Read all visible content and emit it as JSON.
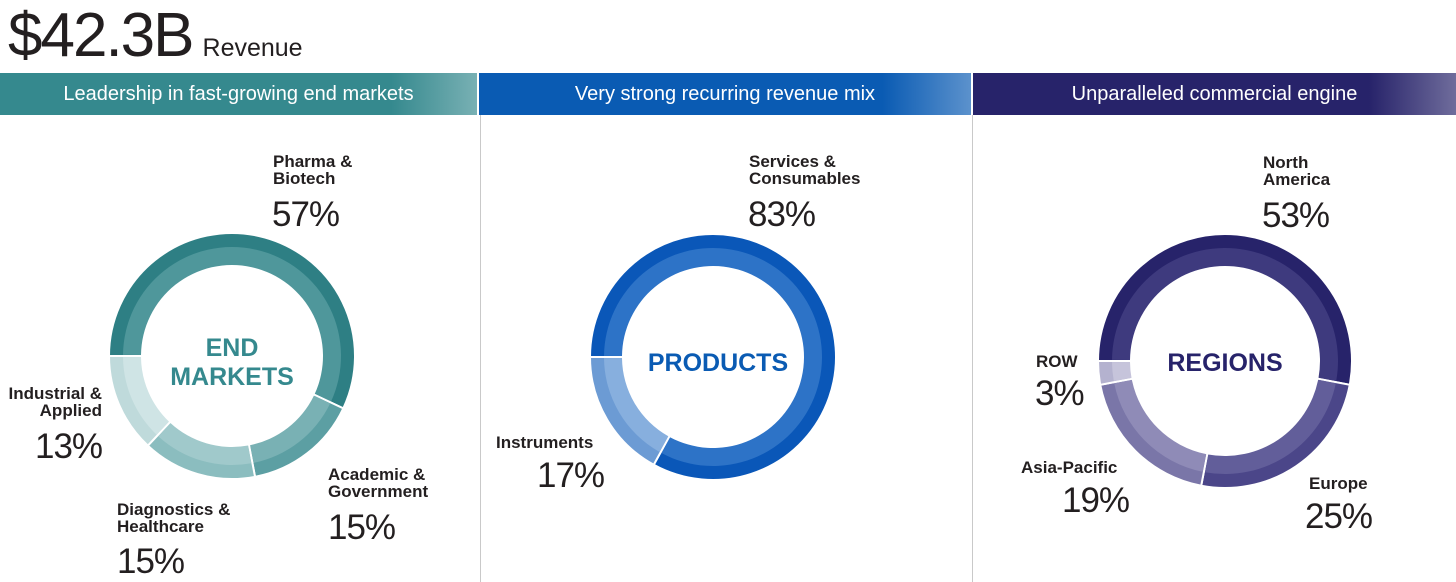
{
  "headline": {
    "value": "$42.3B",
    "label": "Revenue"
  },
  "bands": [
    {
      "text": "Leadership in fast-growing end markets",
      "color": "#35898e"
    },
    {
      "text": "Very strong recurring revenue mix",
      "color": "#0a5bb3"
    },
    {
      "text": "Unparalleled commercial engine",
      "color": "#27236a"
    }
  ],
  "chart_data": [
    {
      "type": "pie",
      "center_label": "END\nMARKETS",
      "center_color": "#35898e",
      "slices": [
        {
          "name": "Pharma & Biotech",
          "label": "Pharma &\nBiotech",
          "value": 57,
          "pct": "57%",
          "color": "#2e7f84",
          "inner": "#4f979b"
        },
        {
          "name": "Academic & Government",
          "label": "Academic &\nGovernment",
          "value": 15,
          "pct": "15%",
          "color": "#5c9fa3",
          "inner": "#79b1b4"
        },
        {
          "name": "Diagnostics & Healthcare",
          "label": "Diagnostics &\nHealthcare",
          "value": 15,
          "pct": "15%",
          "color": "#8bbdbf",
          "inner": "#a0c9cb"
        },
        {
          "name": "Industrial & Applied",
          "label": "Industrial &\nApplied",
          "value": 13,
          "pct": "13%",
          "color": "#bfdadb",
          "inner": "#cfe4e5"
        }
      ]
    },
    {
      "type": "pie",
      "center_label": "PRODUCTS",
      "center_color": "#0a5bb3",
      "slices": [
        {
          "name": "Services & Consumables",
          "label": "Services &\nConsumables",
          "value": 83,
          "pct": "83%",
          "color": "#0a57b8",
          "inner": "#2d73c7"
        },
        {
          "name": "Instruments",
          "label": "Instruments",
          "value": 17,
          "pct": "17%",
          "color": "#6c9bd4",
          "inner": "#87afde"
        }
      ]
    },
    {
      "type": "pie",
      "center_label": "REGIONS",
      "center_color": "#27236a",
      "slices": [
        {
          "name": "North America",
          "label": "North\nAmerica",
          "value": 53,
          "pct": "53%",
          "color": "#27236a",
          "inner": "#3e3a7e"
        },
        {
          "name": "Europe",
          "label": "Europe",
          "value": 25,
          "pct": "25%",
          "color": "#4b4689",
          "inner": "#625e9a"
        },
        {
          "name": "Asia-Pacific",
          "label": "Asia-Pacific",
          "value": 19,
          "pct": "19%",
          "color": "#7a76a8",
          "inner": "#8f8bb7"
        },
        {
          "name": "ROW",
          "label": "ROW",
          "value": 3,
          "pct": "3%",
          "color": "#b4b2cf",
          "inner": "#c6c4db"
        }
      ]
    }
  ]
}
